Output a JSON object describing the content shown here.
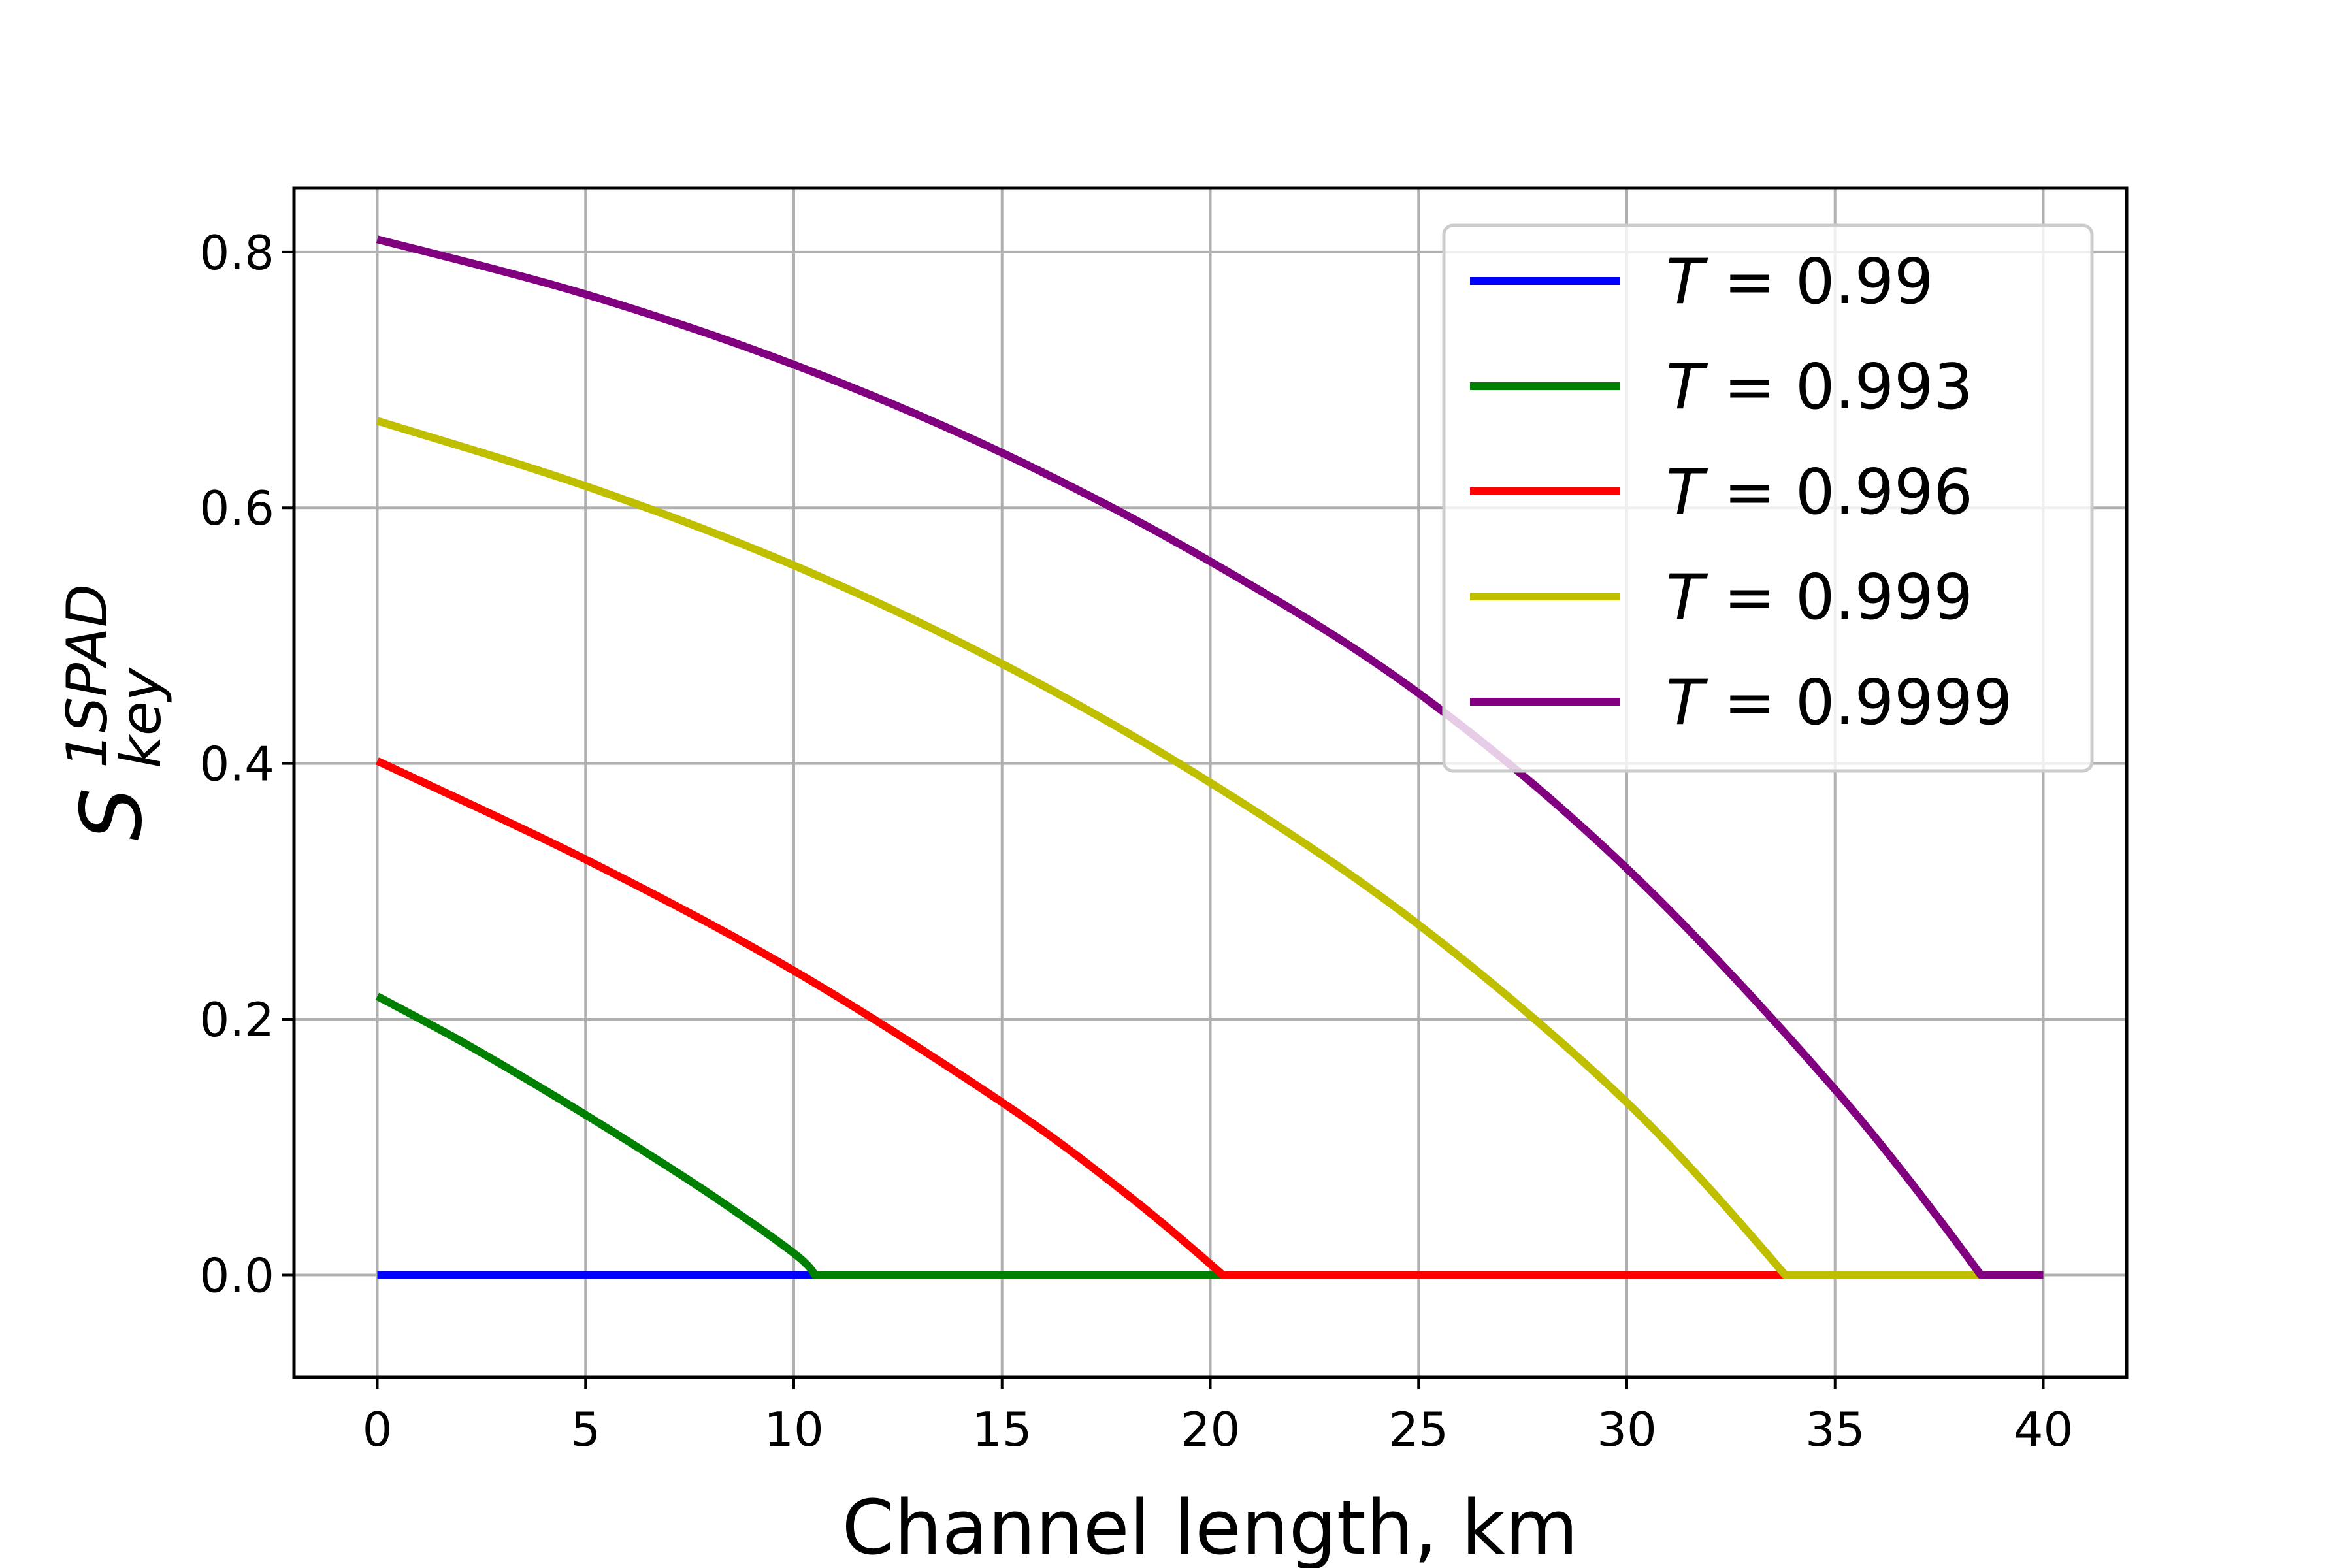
{
  "chart_data": {
    "type": "line",
    "xlabel": "Channel length, km",
    "ylabel": {
      "base": "S",
      "superscript": "1SPAD",
      "subscript": "key"
    },
    "xlim": [
      -2,
      42
    ],
    "ylim": [
      -0.08,
      0.85
    ],
    "xticks": [
      0,
      5,
      10,
      15,
      20,
      25,
      30,
      35,
      40
    ],
    "xtick_labels": [
      "0",
      "5",
      "10",
      "15",
      "20",
      "25",
      "30",
      "35",
      "40"
    ],
    "yticks": [
      0.0,
      0.2,
      0.4,
      0.6,
      0.8
    ],
    "ytick_labels": [
      "0.0",
      "0.2",
      "0.4",
      "0.6",
      "0.8"
    ],
    "grid": true,
    "legend_position": "top-right",
    "series": [
      {
        "name": "T = 0.99",
        "legend_var": "T",
        "legend_value": " = 0.99",
        "color": "#0000ff",
        "x": [
          0,
          10.5
        ],
        "y": [
          0,
          0
        ]
      },
      {
        "name": "T = 0.993",
        "legend_var": "T",
        "legend_value": " = 0.993",
        "color": "#008000",
        "x": [
          0,
          2,
          4,
          6,
          8,
          10,
          10.5,
          20.3
        ],
        "y": [
          0.218,
          0.183,
          0.145,
          0.105,
          0.063,
          0.017,
          0,
          0
        ]
      },
      {
        "name": "T = 0.996",
        "legend_var": "T",
        "legend_value": " = 0.996",
        "color": "#ff0000",
        "x": [
          0,
          5,
          10,
          15,
          18,
          20.3,
          33.8
        ],
        "y": [
          0.402,
          0.325,
          0.238,
          0.135,
          0.063,
          0,
          0
        ]
      },
      {
        "name": "T = 0.999",
        "legend_var": "T",
        "legend_value": " = 0.999",
        "color": "#bfbf00",
        "x": [
          0,
          5,
          10,
          15,
          20,
          25,
          30,
          33.8,
          38.5
        ],
        "y": [
          0.668,
          0.617,
          0.555,
          0.478,
          0.385,
          0.274,
          0.135,
          0,
          0
        ]
      },
      {
        "name": "T = 0.9999",
        "legend_var": "T",
        "legend_value": " = 0.9999",
        "color": "#800080",
        "x": [
          0,
          5,
          10,
          15,
          20,
          25,
          30,
          35,
          38.5,
          40
        ],
        "y": [
          0.81,
          0.767,
          0.712,
          0.643,
          0.558,
          0.455,
          0.318,
          0.145,
          0,
          0
        ]
      }
    ]
  }
}
